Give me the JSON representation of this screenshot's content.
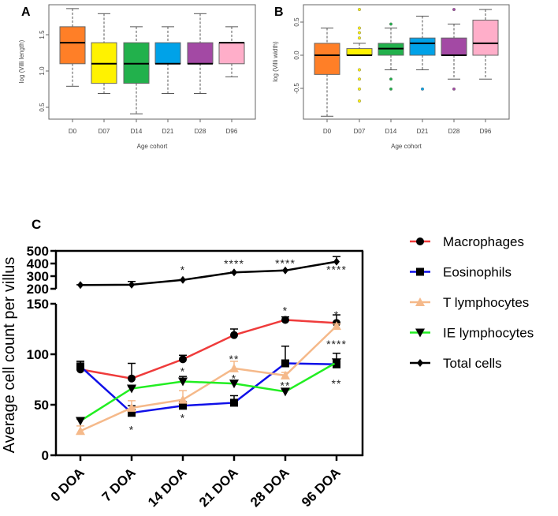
{
  "chart_data": [
    {
      "type": "boxplot",
      "panel_label": "A",
      "xlabel": "Age cohort",
      "ylabel": "log (Villi length)",
      "yticks": [
        0.5,
        1.0,
        1.5
      ],
      "ytick_labels": [
        "0.5",
        "1.0",
        "1.5"
      ],
      "categories": [
        "D0",
        "D07",
        "D14",
        "D21",
        "D28",
        "D96"
      ],
      "colors": [
        "#ff7f27",
        "#fff200",
        "#22b14c",
        "#00a2e8",
        "#a349a4",
        "#ffaec9"
      ],
      "boxes": [
        {
          "whisker_low": 0.79,
          "q1": 1.1,
          "median": 1.39,
          "q3": 1.61,
          "whisker_high": 1.86,
          "outliers": []
        },
        {
          "whisker_low": 0.69,
          "q1": 0.83,
          "median": 1.1,
          "q3": 1.39,
          "whisker_high": 1.79,
          "outliers": []
        },
        {
          "whisker_low": 0.41,
          "q1": 0.83,
          "median": 1.1,
          "q3": 1.39,
          "whisker_high": 1.61,
          "outliers": []
        },
        {
          "whisker_low": 0.69,
          "q1": 1.1,
          "median": 1.1,
          "q3": 1.39,
          "whisker_high": 1.61,
          "outliers": []
        },
        {
          "whisker_low": 0.69,
          "q1": 1.1,
          "median": 1.1,
          "q3": 1.39,
          "whisker_high": 1.79,
          "outliers": []
        },
        {
          "whisker_low": 0.92,
          "q1": 1.1,
          "median": 1.39,
          "q3": 1.39,
          "whisker_high": 1.61,
          "outliers": []
        }
      ],
      "ylim": [
        0.33,
        1.92
      ]
    },
    {
      "type": "boxplot",
      "panel_label": "B",
      "xlabel": "Age cohort",
      "ylabel": "log (Villi width)",
      "yticks": [
        -0.5,
        0.0,
        0.5
      ],
      "ytick_labels": [
        "-0.5",
        "0.0",
        "0.5"
      ],
      "categories": [
        "D0",
        "D07",
        "D14",
        "D21",
        "D28",
        "D96"
      ],
      "colors": [
        "#ff7f27",
        "#fff200",
        "#22b14c",
        "#00a2e8",
        "#a349a4",
        "#ffaec9"
      ],
      "boxes": [
        {
          "whisker_low": -0.92,
          "q1": -0.29,
          "median": 0.0,
          "q3": 0.18,
          "whisker_high": 0.41,
          "outliers": []
        },
        {
          "whisker_low": 0.0,
          "q1": 0.0,
          "median": 0.0,
          "q3": 0.1,
          "whisker_high": 0.18,
          "outliers": [
            0.69,
            0.41,
            0.34,
            0.26,
            -0.22,
            -0.36,
            -0.51,
            -0.69
          ]
        },
        {
          "whisker_low": -0.22,
          "q1": 0.0,
          "median": 0.1,
          "q3": 0.18,
          "whisker_high": 0.41,
          "outliers": [
            0.47,
            -0.36,
            -0.51
          ]
        },
        {
          "whisker_low": -0.22,
          "q1": 0.0,
          "median": 0.18,
          "q3": 0.26,
          "whisker_high": 0.59,
          "outliers": [
            -0.51
          ]
        },
        {
          "whisker_low": -0.36,
          "q1": 0.0,
          "median": 0.0,
          "q3": 0.26,
          "whisker_high": 0.47,
          "outliers": [
            0.69,
            -0.51
          ]
        },
        {
          "whisker_low": -0.36,
          "q1": 0.0,
          "median": 0.18,
          "q3": 0.53,
          "whisker_high": 0.69,
          "outliers": []
        }
      ],
      "ylim": [
        -1.0,
        0.77
      ]
    },
    {
      "type": "line",
      "panel_label": "C",
      "ylabel": "Average cell count per villus",
      "categories": [
        "0 DOA",
        "7 DOA",
        "14 DOA",
        "21 DOA",
        "28 DOA",
        "96 DOA"
      ],
      "broken_axis": {
        "lower": [
          0,
          150
        ],
        "upper": [
          200,
          500
        ]
      },
      "yticks_lower": [
        "0",
        "50",
        "100",
        "150"
      ],
      "yticks_upper": [
        "200",
        "300",
        "400",
        "500"
      ],
      "legend_position": "right",
      "series": [
        {
          "name": "Macrophages",
          "color": "#ef3b3b",
          "marker": "circle",
          "values": [
            85,
            76,
            95,
            119,
            134,
            131
          ],
          "error_high": [
            93,
            91,
            99,
            125,
            137,
            139
          ]
        },
        {
          "name": "Eosinophils",
          "color": "#1010e8",
          "marker": "square",
          "values": [
            88,
            42,
            49,
            52,
            91,
            90
          ],
          "error_high": [
            93,
            49,
            53,
            59,
            108,
            101
          ]
        },
        {
          "name": "T lymphocytes",
          "color": "#f5b98a",
          "marker": "triangle-up",
          "values": [
            24,
            47,
            55,
            86,
            79,
            128
          ],
          "error_high": [
            29,
            54,
            64,
            93,
            82,
            130
          ]
        },
        {
          "name": "IE lymphocytes",
          "color": "#22ee22",
          "marker": "triangle-down",
          "values": [
            34,
            66,
            73,
            71,
            63,
            92
          ],
          "error_high": [
            36,
            68,
            78,
            74,
            65,
            95
          ]
        },
        {
          "name": "Total cells",
          "color": "#000000",
          "marker": "diamond",
          "values": [
            230,
            232,
            270,
            330,
            345,
            415
          ],
          "error_high": [
            232,
            258,
            272,
            332,
            347,
            455
          ]
        }
      ],
      "annotations": [
        {
          "text": "*",
          "category": "14 DOA",
          "value": 355,
          "axis": "upper"
        },
        {
          "text": "****",
          "category": "21 DOA",
          "value": 405,
          "axis": "upper"
        },
        {
          "text": "****",
          "category": "28 DOA",
          "value": 410,
          "axis": "upper"
        },
        {
          "text": "****",
          "category": "96 DOA",
          "value": 360,
          "axis": "upper"
        },
        {
          "text": "*",
          "category": "28 DOA",
          "value": 144,
          "axis": "lower"
        },
        {
          "text": "*",
          "category": "96 DOA",
          "value": 140,
          "axis": "lower"
        },
        {
          "text": "****",
          "category": "96 DOA",
          "value": 111,
          "axis": "lower"
        },
        {
          "text": "**",
          "category": "21 DOA",
          "value": 96,
          "axis": "lower"
        },
        {
          "text": "*",
          "category": "14 DOA",
          "value": 84,
          "axis": "lower"
        },
        {
          "text": "*",
          "category": "21 DOA",
          "value": 77,
          "axis": "lower"
        },
        {
          "text": "**",
          "category": "28 DOA",
          "value": 70,
          "axis": "lower"
        },
        {
          "text": "**",
          "category": "96 DOA",
          "value": 72,
          "axis": "lower"
        },
        {
          "text": "*",
          "category": "14 DOA",
          "value": 38,
          "axis": "lower"
        },
        {
          "text": "*",
          "category": "7 DOA",
          "value": 26,
          "axis": "lower"
        }
      ]
    }
  ]
}
